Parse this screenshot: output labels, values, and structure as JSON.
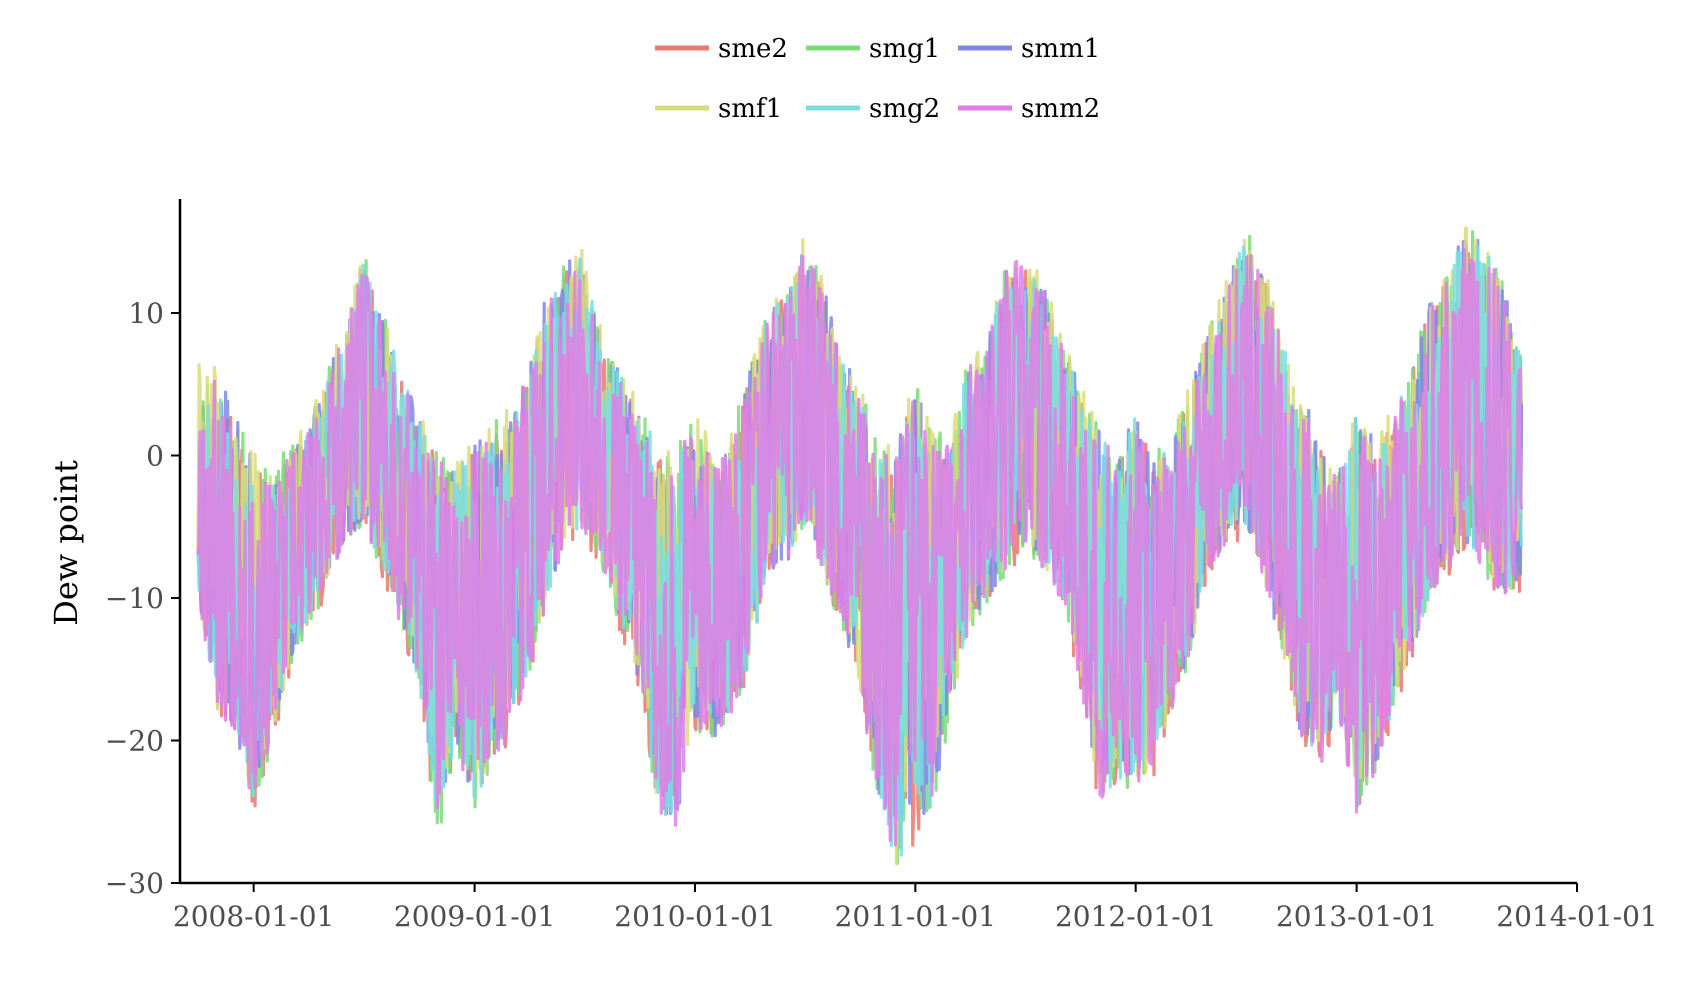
{
  "chart_data": {
    "type": "line",
    "title": "",
    "xlabel": "",
    "ylabel": "Dew point",
    "xlim": [
      "2007-09-01",
      "2014-01-01"
    ],
    "ylim": [
      -30,
      18
    ],
    "grid": false,
    "legend_position": "top",
    "x_ticks": [
      "2008-01-01",
      "2009-01-01",
      "2010-01-01",
      "2011-01-01",
      "2012-01-01",
      "2013-01-01",
      "2014-01-01"
    ],
    "y_ticks": [
      {
        "value": -30,
        "label": "−30"
      },
      {
        "value": -20,
        "label": "−20"
      },
      {
        "value": -10,
        "label": "−10"
      },
      {
        "value": 0,
        "label": "0"
      },
      {
        "value": 10,
        "label": "10"
      }
    ],
    "x": [
      "2007-10-01",
      "2007-11-01",
      "2007-12-01",
      "2008-01-01",
      "2008-02-01",
      "2008-03-01",
      "2008-04-01",
      "2008-05-01",
      "2008-06-01",
      "2008-07-01",
      "2008-08-01",
      "2008-09-01",
      "2008-10-01",
      "2008-11-01",
      "2008-12-01",
      "2009-01-01",
      "2009-02-01",
      "2009-03-01",
      "2009-04-01",
      "2009-05-01",
      "2009-06-01",
      "2009-07-01",
      "2009-08-01",
      "2009-09-01",
      "2009-10-01",
      "2009-11-01",
      "2009-12-01",
      "2010-01-01",
      "2010-02-01",
      "2010-03-01",
      "2010-04-01",
      "2010-05-01",
      "2010-06-01",
      "2010-07-01",
      "2010-08-01",
      "2010-09-01",
      "2010-10-01",
      "2010-11-01",
      "2010-12-01",
      "2011-01-01",
      "2011-02-01",
      "2011-03-01",
      "2011-04-01",
      "2011-05-01",
      "2011-06-01",
      "2011-07-01",
      "2011-08-01",
      "2011-09-01",
      "2011-10-01",
      "2011-11-01",
      "2011-12-01",
      "2012-01-01",
      "2012-02-01",
      "2012-03-01",
      "2012-04-01",
      "2012-05-01",
      "2012-06-01",
      "2012-07-01",
      "2012-08-01",
      "2012-09-01",
      "2012-10-01",
      "2012-11-01",
      "2012-12-01",
      "2013-01-01",
      "2013-02-01",
      "2013-03-01",
      "2013-04-01",
      "2013-05-01",
      "2013-06-01",
      "2013-07-01",
      "2013-08-01",
      "2013-09-01",
      "2013-10-01"
    ],
    "envelope": {
      "high": [
        6,
        6,
        3,
        0,
        -2,
        1,
        2,
        6,
        9,
        14,
        10,
        6,
        3,
        0,
        -1,
        1,
        2,
        3,
        6,
        12,
        14,
        14,
        8,
        6,
        3,
        1,
        0,
        3,
        0,
        1,
        6,
        10,
        12,
        15,
        12,
        7,
        5,
        0,
        1,
        5,
        1,
        2,
        7,
        8,
        14,
        14,
        12,
        8,
        5,
        2,
        0,
        3,
        0,
        1,
        5,
        9,
        12,
        16,
        13,
        8,
        5,
        1,
        -1,
        3,
        1,
        3,
        6,
        11,
        13,
        16,
        15,
        12,
        7
      ],
      "low": [
        -10,
        -18,
        -19,
        -25,
        -20,
        -15,
        -12,
        -9,
        -6,
        -5,
        -8,
        -12,
        -16,
        -27,
        -20,
        -25,
        -21,
        -20,
        -15,
        -10,
        -6,
        -5,
        -8,
        -12,
        -16,
        -25,
        -26,
        -19,
        -20,
        -18,
        -15,
        -8,
        -8,
        -5,
        -8,
        -12,
        -17,
        -24,
        -29,
        -27,
        -24,
        -18,
        -12,
        -10,
        -8,
        -6,
        -8,
        -10,
        -16,
        -24,
        -23,
        -23,
        -22,
        -18,
        -14,
        -8,
        -6,
        -5,
        -9,
        -14,
        -20,
        -22,
        -18,
        -25,
        -22,
        -18,
        -14,
        -10,
        -8,
        -6,
        -8,
        -10,
        -9
      ]
    },
    "series": [
      {
        "name": "sme2",
        "color": "#e8776f",
        "seed": 11,
        "low_offset": -0.6,
        "high_offset": -0.5
      },
      {
        "name": "smg1",
        "color": "#79dc79",
        "seed": 23,
        "low_offset": -0.3,
        "high_offset": 0.3
      },
      {
        "name": "smm1",
        "color": "#7f86e6",
        "seed": 37,
        "low_offset": 0.0,
        "high_offset": 0.0
      },
      {
        "name": "smf1",
        "color": "#d9dc79",
        "seed": 41,
        "low_offset": 0.2,
        "high_offset": 0.4
      },
      {
        "name": "smg2",
        "color": "#78dde3",
        "seed": 53,
        "low_offset": 0.0,
        "high_offset": -0.2
      },
      {
        "name": "smm2",
        "color": "#e07ce6",
        "seed": 67,
        "low_offset": -0.2,
        "high_offset": -0.3
      }
    ]
  }
}
